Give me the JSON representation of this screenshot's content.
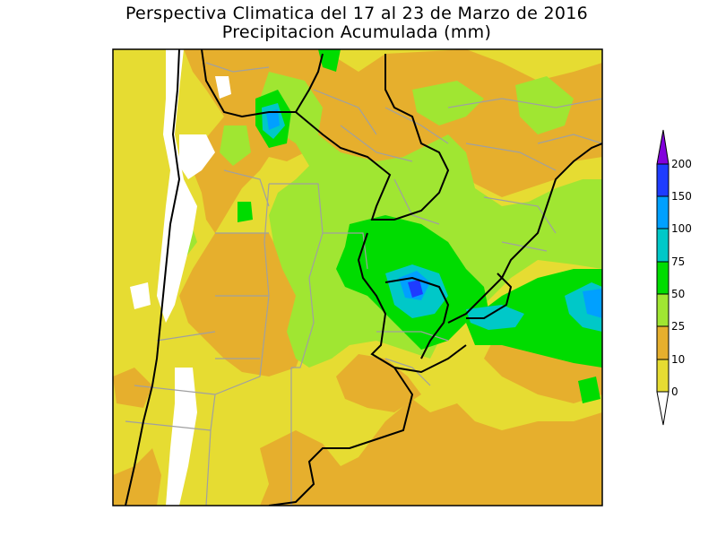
{
  "title": "Perspectiva Climatica del 17 al 23 de Marzo de 2016",
  "subtitle": "Precipitacion Acumulada (mm)",
  "legend": {
    "unit": "mm",
    "labels": [
      "0",
      "10",
      "25",
      "50",
      "75",
      "100",
      "150",
      "200"
    ],
    "colors": {
      "0-10": "#e6dc32",
      "10-25": "#e6af2d",
      "25-50": "#a0e632",
      "50-75": "#00dc00",
      "75-100": "#00c8c8",
      "100-150": "#00a0ff",
      "150-200": "#1e3cff",
      "above-200": "#8200dc",
      "missing": "#ffffff"
    }
  },
  "map": {
    "region": "southern South America",
    "borders_color": "#000000",
    "provinces_color": "#a0a0a0"
  }
}
